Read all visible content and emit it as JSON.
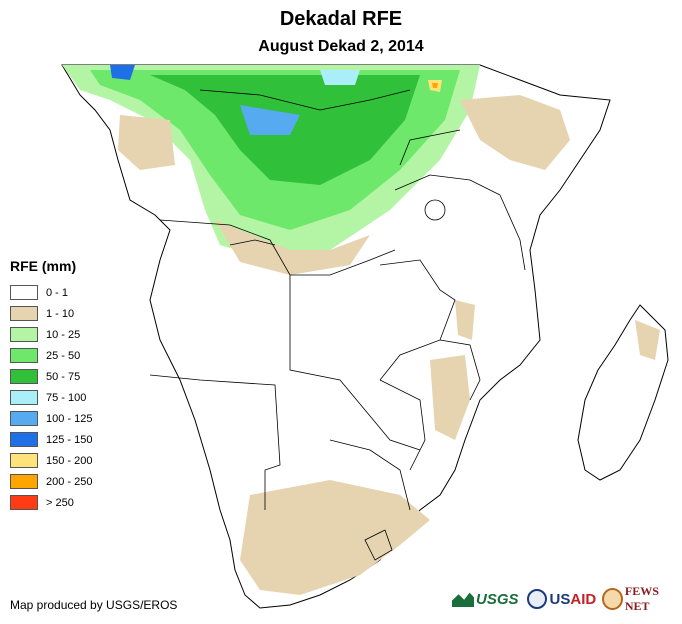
{
  "title": "Dekadal RFE",
  "subtitle": "August Dekad 2, 2014",
  "legend": {
    "title": "RFE (mm)",
    "items": [
      {
        "label": "0 - 1",
        "color": "#ffffff"
      },
      {
        "label": "1 - 10",
        "color": "#e6d3b0"
      },
      {
        "label": "10 - 25",
        "color": "#b4f5a5"
      },
      {
        "label": "25 - 50",
        "color": "#6ee86a"
      },
      {
        "label": "50 - 75",
        "color": "#30c03a"
      },
      {
        "label": "75 - 100",
        "color": "#aaeefa"
      },
      {
        "label": "100 - 125",
        "color": "#56aaf0"
      },
      {
        "label": "125 - 150",
        "color": "#1f6fe6"
      },
      {
        "label": "150 - 200",
        "color": "#ffe27a"
      },
      {
        "label": "200 - 250",
        "color": "#ffa500"
      },
      {
        "label": "> 250",
        "color": "#ff3c14"
      }
    ]
  },
  "credit": "Map produced by USGS/EROS",
  "logos": {
    "usgs": "USGS",
    "usaid_a": "US",
    "usaid_b": "AID",
    "fews": "FEWS NET"
  }
}
